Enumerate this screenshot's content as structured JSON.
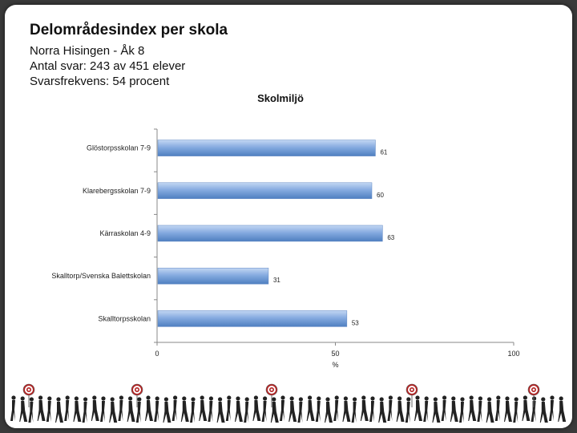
{
  "header": {
    "title": "Delområdesindex per skola",
    "line1": "Norra Hisingen - Åk 8",
    "line2": "Antal svar: 243 av 451 elever",
    "line3": "Svarsfrekvens: 54 procent"
  },
  "chart_data": {
    "type": "bar",
    "orientation": "horizontal",
    "title": "Skolmiljö",
    "categories": [
      "Glöstorpsskolan 7-9",
      "Klarebergsskolan 7-9",
      "Kärraskolan 4-9",
      "Skalltorp/Svenska Balettskolan",
      "Skalltorpsskolan"
    ],
    "values": [
      61,
      60,
      63,
      31,
      53
    ],
    "xlabel": "%",
    "xlim": [
      0,
      100
    ],
    "xticks": [
      0,
      50,
      100
    ],
    "data_labels": true,
    "bar_color": "#7fa7dd",
    "grid": false
  },
  "colors": {
    "bar": "#7fa7dd",
    "bar_dark": "#4f7fc0",
    "bar_light": "#b9d1f0",
    "axis": "#777777"
  }
}
